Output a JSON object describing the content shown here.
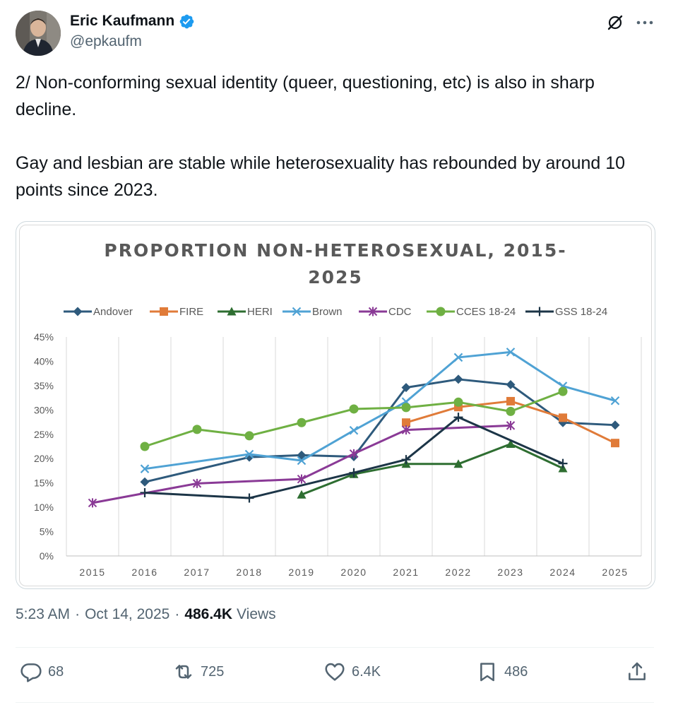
{
  "author": {
    "name": "Eric Kaufmann",
    "handle": "@epkaufm",
    "verified": true
  },
  "tweet": {
    "paragraphs": [
      "2/ Non-conforming sexual identity (queer, questioning, etc) is also in sharp decline.",
      "Gay and lesbian are stable while heterosexuality has rebounded by around 10 points since 2023."
    ]
  },
  "meta": {
    "time": "5:23 AM",
    "date": "Oct 14, 2025",
    "separator": "·",
    "views_count": "486.4K",
    "views_label": "Views"
  },
  "actions": {
    "replies": "68",
    "reposts": "725",
    "likes": "6.4K",
    "bookmarks": "486"
  },
  "icons": [
    "verified-badge-icon",
    "grok-icon",
    "more-icon",
    "reply-icon",
    "repost-icon",
    "like-icon",
    "bookmark-icon",
    "share-icon"
  ],
  "colors": {
    "verified": "#1d9bf0",
    "text": "#0f1419",
    "muted": "#536471"
  },
  "chart_data": {
    "type": "line",
    "title": "PROPORTION NON-HETEROSEXUAL, 2015-2025",
    "title_lines": [
      "PROPORTION NON-HETEROSEXUAL, 2015-",
      "2025"
    ],
    "x": [
      "2015",
      "2016",
      "2017",
      "2018",
      "2019",
      "2020",
      "2021",
      "2022",
      "2023",
      "2024",
      "2025"
    ],
    "y_ticks": [
      "0%",
      "5%",
      "10%",
      "15%",
      "20%",
      "25%",
      "30%",
      "35%",
      "40%",
      "45%"
    ],
    "ylim": [
      0,
      45
    ],
    "grid": "vertical",
    "legend_position": "top",
    "series": [
      {
        "name": "Andover",
        "color": "#2e5a7c",
        "marker": "diamond",
        "values": [
          null,
          15.2,
          null,
          20.3,
          20.7,
          20.4,
          34.6,
          36.3,
          35.2,
          27.4,
          26.9
        ]
      },
      {
        "name": "FIRE",
        "color": "#e07b39",
        "marker": "square",
        "values": [
          null,
          null,
          null,
          null,
          null,
          null,
          27.4,
          30.6,
          31.8,
          28.4,
          23.2
        ]
      },
      {
        "name": "HERI",
        "color": "#2e6e31",
        "marker": "triangle",
        "values": [
          null,
          null,
          null,
          null,
          12.6,
          16.8,
          18.9,
          18.9,
          23.0,
          18.0,
          null
        ]
      },
      {
        "name": "Brown",
        "color": "#4fa2d4",
        "marker": "x",
        "values": [
          null,
          17.9,
          null,
          20.9,
          19.6,
          25.8,
          31.7,
          40.8,
          41.9,
          34.9,
          31.9
        ]
      },
      {
        "name": "CDC",
        "color": "#8a3a96",
        "marker": "star",
        "values": [
          10.9,
          null,
          14.9,
          null,
          15.8,
          21.0,
          25.9,
          null,
          26.8,
          null,
          null
        ]
      },
      {
        "name": "CCES 18-24",
        "color": "#6fb043",
        "marker": "circle",
        "values": [
          null,
          22.5,
          26.0,
          24.7,
          27.4,
          30.2,
          30.5,
          31.6,
          29.7,
          33.8,
          null
        ]
      },
      {
        "name": "GSS 18-24",
        "color": "#1c3547",
        "marker": "plus",
        "values": [
          null,
          13.0,
          null,
          11.9,
          null,
          17.1,
          19.8,
          28.5,
          null,
          19.0,
          null
        ]
      }
    ]
  }
}
